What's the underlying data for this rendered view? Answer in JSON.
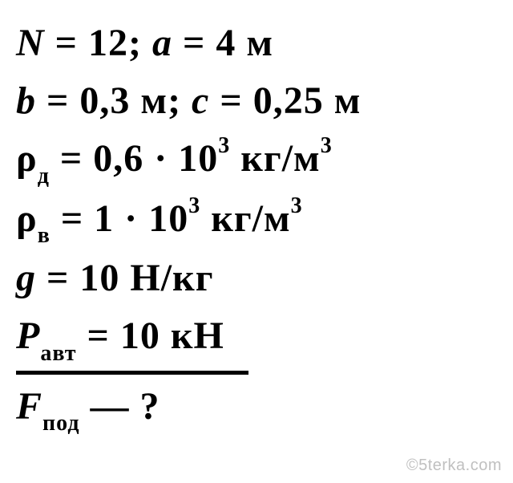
{
  "lines": {
    "l1": {
      "var1": "N",
      "eq1": " = ",
      "val1": "12",
      "sep": "; ",
      "var2": "a",
      "eq2": " = ",
      "val2": "4",
      "unit2": " м"
    },
    "l2": {
      "var1": "b",
      "eq1": " = ",
      "val1": "0,3",
      "unit1": " м",
      "sep": "; ",
      "var2": "c",
      "eq2": " = ",
      "val2": "0,25",
      "unit2": " м"
    },
    "l3": {
      "var": "ρ",
      "sub": "д",
      "eq": " = ",
      "coef": "0,6",
      "dot": " · ",
      "base": "10",
      "exp": "3",
      "unit_pre": " кг/м",
      "unit_exp": "3"
    },
    "l4": {
      "var": "ρ",
      "sub": "в",
      "eq": " = ",
      "coef": "1",
      "dot": " · ",
      "base": "10",
      "exp": "3",
      "unit_pre": " кг/м",
      "unit_exp": "3"
    },
    "l5": {
      "var": "g",
      "eq": " = ",
      "val": "10",
      "unit": " Н/кг"
    },
    "l6": {
      "var": "P",
      "sub": "авт",
      "eq": " = ",
      "val": "10",
      "unit": " кН"
    },
    "l7": {
      "var": "F",
      "sub": "под",
      "dash": " — ",
      "q": "?"
    }
  },
  "watermark": "©5terka.com",
  "styling": {
    "bg_color": "#ffffff",
    "text_color": "#000000",
    "font_family": "Times New Roman",
    "font_size_main": 48,
    "font_size_subsup": 28,
    "font_weight": "bold",
    "font_style": "italic",
    "divider_width": 290,
    "divider_thickness": 5,
    "watermark_color": "#c0c0c0",
    "watermark_fontsize": 20
  }
}
